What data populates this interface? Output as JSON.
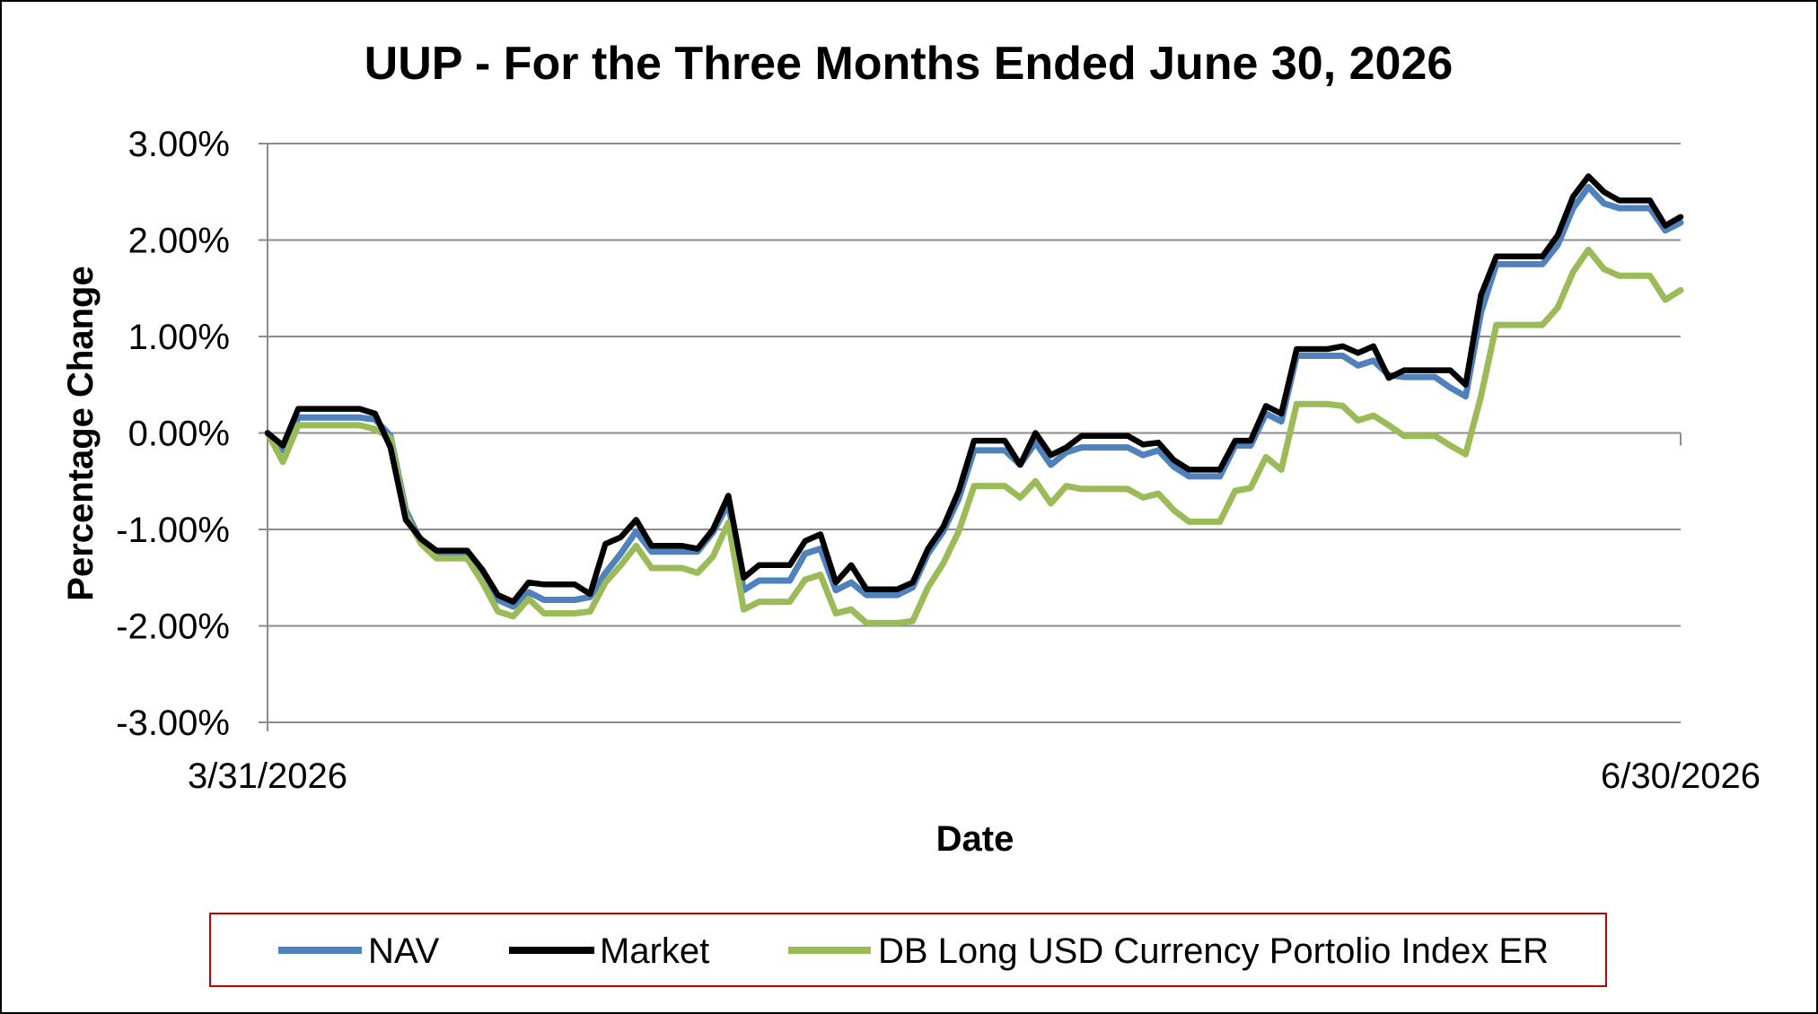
{
  "chart_data": {
    "type": "line",
    "title": "UUP - For the Three Months Ended June 30, 2026",
    "xlabel": "Date",
    "ylabel": "Percentage Change",
    "x_tick_labels": [
      "3/31/2026",
      "6/30/2026"
    ],
    "ylim": [
      -3,
      3
    ],
    "y_ticks": [
      3,
      2,
      1,
      0,
      -1,
      -2,
      -3
    ],
    "y_tick_labels": [
      "3.00%",
      "2.00%",
      "1.00%",
      "0.00%",
      "-1.00%",
      "-2.00%",
      "-3.00%"
    ],
    "grid": true,
    "legend_position": "bottom",
    "series": [
      {
        "name": "NAV",
        "color": "#4F81BD",
        "values": [
          0,
          -0.18,
          0.16,
          0.16,
          0.16,
          0.16,
          0.16,
          0.14,
          -0.03,
          -0.8,
          -1.13,
          -1.25,
          -1.25,
          -1.25,
          -1.45,
          -1.73,
          -1.8,
          -1.65,
          -1.73,
          -1.73,
          -1.73,
          -1.7,
          -1.45,
          -1.25,
          -1.02,
          -1.23,
          -1.23,
          -1.23,
          -1.23,
          -1.03,
          -0.73,
          -1.63,
          -1.53,
          -1.53,
          -1.53,
          -1.25,
          -1.2,
          -1.63,
          -1.55,
          -1.68,
          -1.68,
          -1.68,
          -1.6,
          -1.25,
          -1.02,
          -0.68,
          -0.18,
          -0.18,
          -0.18,
          -0.33,
          -0.1,
          -0.33,
          -0.2,
          -0.15,
          -0.15,
          -0.15,
          -0.15,
          -0.23,
          -0.18,
          -0.35,
          -0.45,
          -0.45,
          -0.45,
          -0.13,
          -0.13,
          0.2,
          0.12,
          0.8,
          0.8,
          0.8,
          0.8,
          0.7,
          0.75,
          0.6,
          0.58,
          0.58,
          0.58,
          0.47,
          0.38,
          1.25,
          1.75,
          1.75,
          1.75,
          1.75,
          1.95,
          2.33,
          2.55,
          2.38,
          2.33,
          2.33,
          2.33,
          2.1,
          2.18
        ]
      },
      {
        "name": "Market",
        "color": "#000000",
        "values": [
          0,
          -0.13,
          0.25,
          0.25,
          0.25,
          0.25,
          0.25,
          0.2,
          -0.15,
          -0.9,
          -1.1,
          -1.22,
          -1.22,
          -1.22,
          -1.42,
          -1.68,
          -1.75,
          -1.55,
          -1.57,
          -1.57,
          -1.57,
          -1.67,
          -1.15,
          -1.08,
          -0.9,
          -1.17,
          -1.17,
          -1.17,
          -1.2,
          -1,
          -0.65,
          -1.5,
          -1.37,
          -1.37,
          -1.37,
          -1.12,
          -1.05,
          -1.55,
          -1.37,
          -1.62,
          -1.62,
          -1.62,
          -1.55,
          -1.2,
          -0.97,
          -0.6,
          -0.08,
          -0.08,
          -0.08,
          -0.33,
          0,
          -0.23,
          -0.15,
          -0.03,
          -0.03,
          -0.03,
          -0.03,
          -0.12,
          -0.1,
          -0.28,
          -0.38,
          -0.38,
          -0.38,
          -0.08,
          -0.08,
          0.28,
          0.2,
          0.87,
          0.87,
          0.87,
          0.9,
          0.83,
          0.9,
          0.57,
          0.65,
          0.65,
          0.65,
          0.65,
          0.5,
          1.43,
          1.83,
          1.83,
          1.83,
          1.83,
          2.05,
          2.45,
          2.66,
          2.5,
          2.41,
          2.41,
          2.41,
          2.15,
          2.24
        ]
      },
      {
        "name": "DB Long USD Currency Portolio Index ER",
        "color": "#9BBB59",
        "values": [
          0,
          -0.3,
          0.08,
          0.08,
          0.08,
          0.08,
          0.08,
          0.04,
          -0.05,
          -0.85,
          -1.15,
          -1.3,
          -1.3,
          -1.3,
          -1.55,
          -1.85,
          -1.9,
          -1.72,
          -1.87,
          -1.87,
          -1.87,
          -1.85,
          -1.55,
          -1.37,
          -1.17,
          -1.4,
          -1.4,
          -1.4,
          -1.45,
          -1.28,
          -0.93,
          -1.83,
          -1.75,
          -1.75,
          -1.75,
          -1.52,
          -1.47,
          -1.87,
          -1.83,
          -1.97,
          -1.97,
          -1.97,
          -1.95,
          -1.6,
          -1.35,
          -1.02,
          -0.55,
          -0.55,
          -0.55,
          -0.67,
          -0.5,
          -0.73,
          -0.55,
          -0.58,
          -0.58,
          -0.58,
          -0.58,
          -0.67,
          -0.63,
          -0.8,
          -0.92,
          -0.92,
          -0.92,
          -0.6,
          -0.57,
          -0.25,
          -0.38,
          0.3,
          0.3,
          0.3,
          0.28,
          0.13,
          0.18,
          0.08,
          -0.03,
          -0.03,
          -0.03,
          -0.13,
          -0.22,
          0.38,
          1.12,
          1.12,
          1.12,
          1.12,
          1.3,
          1.67,
          1.9,
          1.7,
          1.63,
          1.63,
          1.63,
          1.38,
          1.48
        ]
      }
    ]
  }
}
